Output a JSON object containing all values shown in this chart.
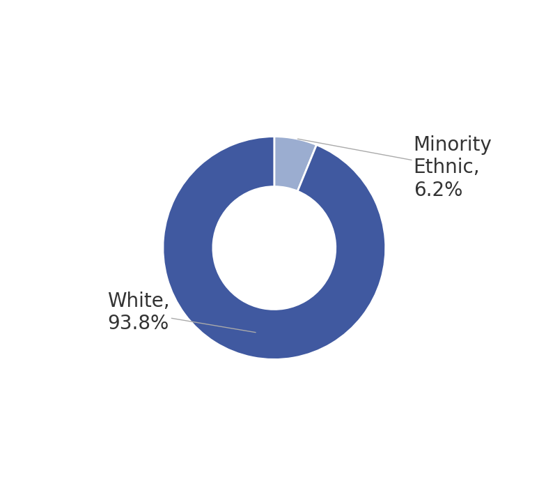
{
  "slices": [
    6.2,
    93.8
  ],
  "colors": [
    "#9badd0",
    "#4059a0"
  ],
  "donut_width": 0.45,
  "label_fontsize": 20,
  "label_color": "#333333",
  "background_color": "#ffffff",
  "minority_text": "Minority\nEthnic,\n6.2%",
  "white_text": "White,\n93.8%",
  "arrow_color": "#aaaaaa"
}
